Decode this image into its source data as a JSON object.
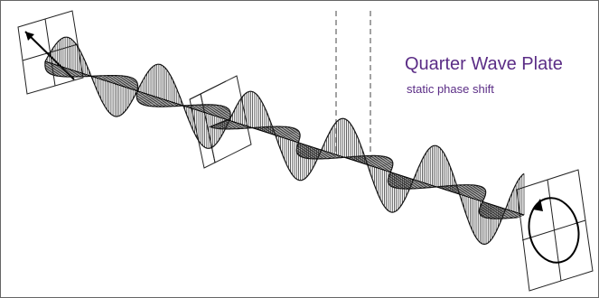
{
  "title": "Quarter Wave Plate",
  "subtitle": "static phase shift"
}
